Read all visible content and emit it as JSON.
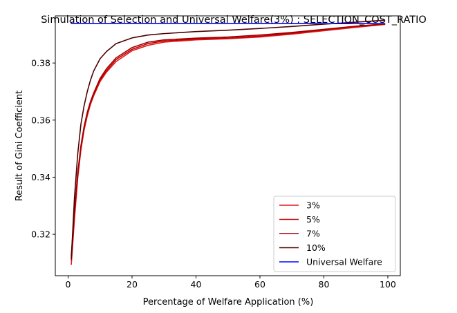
{
  "chart_data": {
    "type": "line",
    "title": "Simulation of Selection and Universal Welfare(3%) : SELECTION_COST_RATIO",
    "xlabel": "Percentage of Welfare Application (%)",
    "ylabel": "Result of Gini Coefficient",
    "xlim": [
      -4,
      103.9
    ],
    "ylim": [
      0.3055,
      0.3965
    ],
    "xticks": [
      0,
      20,
      40,
      60,
      80,
      100
    ],
    "yticks": [
      0.32,
      0.34,
      0.36,
      0.38
    ],
    "ytick_labels": [
      "0.32",
      "0.34",
      "0.36",
      "0.38"
    ],
    "grid": false,
    "legend_position": "lower right",
    "series": [
      {
        "name": "3%",
        "color": "#e31a1c",
        "x": [
          1,
          2,
          3,
          4,
          5,
          6,
          7,
          8,
          10,
          12,
          15,
          20,
          25,
          30,
          40,
          50,
          60,
          70,
          80,
          90,
          99
        ],
        "y": [
          0.3095,
          0.3255,
          0.3395,
          0.3495,
          0.3565,
          0.3615,
          0.3655,
          0.3685,
          0.3735,
          0.3768,
          0.3805,
          0.3843,
          0.3862,
          0.3873,
          0.3881,
          0.3885,
          0.3891,
          0.3901,
          0.3913,
          0.3925,
          0.3935
        ]
      },
      {
        "name": "5%",
        "color": "#c00000",
        "x": [
          1,
          2,
          3,
          4,
          5,
          6,
          7,
          8,
          10,
          12,
          15,
          20,
          25,
          30,
          40,
          50,
          60,
          70,
          80,
          90,
          99
        ],
        "y": [
          0.311,
          0.327,
          0.3405,
          0.3503,
          0.3572,
          0.3622,
          0.366,
          0.369,
          0.374,
          0.3773,
          0.3812,
          0.3848,
          0.3868,
          0.3877,
          0.3884,
          0.3887,
          0.3894,
          0.3904,
          0.3916,
          0.3928,
          0.3936
        ]
      },
      {
        "name": "7%",
        "color": "#a00000",
        "x": [
          1,
          2,
          3,
          4,
          5,
          6,
          7,
          8,
          10,
          12,
          15,
          20,
          25,
          30,
          40,
          50,
          60,
          70,
          80,
          90,
          99
        ],
        "y": [
          0.3125,
          0.3285,
          0.3415,
          0.351,
          0.3578,
          0.3628,
          0.3665,
          0.3695,
          0.3746,
          0.378,
          0.3818,
          0.3854,
          0.3873,
          0.3881,
          0.3887,
          0.3891,
          0.3898,
          0.3907,
          0.3918,
          0.3929,
          0.3937
        ]
      },
      {
        "name": "10%",
        "color": "#4d0000",
        "x": [
          1,
          2,
          3,
          4,
          5,
          6,
          7,
          8,
          10,
          12,
          15,
          20,
          25,
          30,
          40,
          50,
          60,
          70,
          80,
          90,
          99
        ],
        "y": [
          0.3115,
          0.333,
          0.348,
          0.3585,
          0.365,
          0.37,
          0.374,
          0.3772,
          0.3815,
          0.384,
          0.3868,
          0.3888,
          0.3898,
          0.3903,
          0.391,
          0.3915,
          0.3921,
          0.3928,
          0.3936,
          0.3943,
          0.395
        ]
      },
      {
        "name": "Universal Welfare",
        "color": "#0000ff",
        "x": [
          1,
          99
        ],
        "y": [
          0.3938,
          0.3938
        ]
      }
    ]
  }
}
